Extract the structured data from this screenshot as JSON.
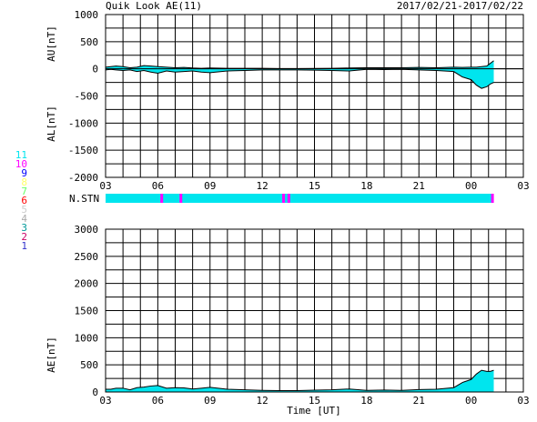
{
  "header": {
    "title": "Quik Look AE(11)",
    "date_range": "2017/02/21-2017/02/22"
  },
  "colors": {
    "fill": "#00e5ee",
    "line": "#000000",
    "grid": "#000000",
    "background": "#ffffff",
    "highlight": "#ff00ff"
  },
  "station_legend": {
    "items": [
      {
        "label": "11",
        "color": "#00e5ee"
      },
      {
        "label": "10",
        "color": "#ff00ff"
      },
      {
        "label": "9",
        "color": "#0000ff"
      },
      {
        "label": "8",
        "color": "#ffff66"
      },
      {
        "label": "7",
        "color": "#66ff66"
      },
      {
        "label": "6",
        "color": "#ff0000"
      },
      {
        "label": "5",
        "color": "#cccccc"
      },
      {
        "label": "4",
        "color": "#aaaaaa"
      },
      {
        "label": "3",
        "color": "#009999"
      },
      {
        "label": "2",
        "color": "#cc0066"
      },
      {
        "label": "1",
        "color": "#3333cc"
      }
    ]
  },
  "nstn": {
    "label": "N.STN",
    "base_count": 11,
    "markers": [
      {
        "t": 6.2,
        "count": 10
      },
      {
        "t": 7.3,
        "count": 10
      },
      {
        "t": 13.2,
        "count": 10
      },
      {
        "t": 13.5,
        "count": 10
      },
      {
        "t": 25.2,
        "count": 10
      }
    ],
    "data_end": 25.3
  },
  "chart_data": [
    {
      "type": "area",
      "panel": "AU-AL",
      "ylabel_upper": "AU[nT]",
      "ylabel_lower": "AL[nT]",
      "xlabel": "",
      "ylim": [
        -2000,
        1000
      ],
      "yticks": [
        1000,
        500,
        0,
        -500,
        -1000,
        -1500,
        -2000
      ],
      "xlim": [
        3,
        27
      ],
      "xticks": [
        "03",
        "06",
        "09",
        "12",
        "15",
        "18",
        "21",
        "00",
        "03"
      ],
      "grid": true,
      "series": [
        {
          "name": "AU",
          "x": [
            3,
            3.3,
            3.6,
            4,
            4.4,
            4.8,
            5.2,
            5.6,
            6,
            6.5,
            7,
            7.5,
            8,
            8.5,
            9,
            10,
            11,
            12,
            13,
            14,
            15,
            16,
            17,
            18,
            19,
            20,
            21,
            22,
            23,
            23.5,
            24,
            24.3,
            24.6,
            24.9,
            25.1,
            25.3
          ],
          "values": [
            30,
            40,
            50,
            40,
            20,
            30,
            60,
            50,
            40,
            30,
            20,
            25,
            15,
            10,
            15,
            10,
            10,
            10,
            5,
            5,
            8,
            10,
            15,
            20,
            20,
            20,
            25,
            20,
            30,
            25,
            30,
            30,
            40,
            50,
            100,
            150
          ]
        },
        {
          "name": "AL",
          "x": [
            3,
            3.3,
            3.6,
            4,
            4.4,
            4.8,
            5.2,
            5.6,
            6,
            6.5,
            7,
            7.5,
            8,
            8.5,
            9,
            10,
            11,
            12,
            13,
            14,
            15,
            16,
            17,
            18,
            19,
            20,
            21,
            22,
            23,
            23.5,
            24,
            24.3,
            24.6,
            24.9,
            25.1,
            25.3
          ],
          "values": [
            -20,
            -10,
            -20,
            -30,
            -20,
            -50,
            -30,
            -60,
            -80,
            -40,
            -60,
            -50,
            -40,
            -60,
            -70,
            -40,
            -30,
            -20,
            -20,
            -20,
            -25,
            -30,
            -40,
            -10,
            -15,
            -10,
            -20,
            -30,
            -50,
            -150,
            -200,
            -300,
            -360,
            -330,
            -280,
            -250
          ]
        }
      ]
    },
    {
      "type": "area",
      "panel": "AE",
      "ylabel": "AE[nT]",
      "xlabel": "Time [UT]",
      "ylim": [
        0,
        3000
      ],
      "yticks": [
        3000,
        2500,
        2000,
        1500,
        1000,
        500,
        0
      ],
      "xlim": [
        3,
        27
      ],
      "xticks": [
        "03",
        "06",
        "09",
        "12",
        "15",
        "18",
        "21",
        "00",
        "03"
      ],
      "grid": true,
      "series": [
        {
          "name": "AE",
          "x": [
            3,
            3.3,
            3.6,
            4,
            4.4,
            4.8,
            5.2,
            5.6,
            6,
            6.5,
            7,
            7.5,
            8,
            8.5,
            9,
            10,
            11,
            12,
            13,
            14,
            15,
            16,
            17,
            18,
            19,
            20,
            21,
            22,
            23,
            23.5,
            24,
            24.3,
            24.6,
            24.9,
            25.1,
            25.3
          ],
          "values": [
            50,
            50,
            70,
            70,
            40,
            80,
            90,
            110,
            120,
            70,
            80,
            75,
            55,
            70,
            85,
            50,
            40,
            30,
            25,
            25,
            33,
            40,
            55,
            30,
            35,
            30,
            45,
            50,
            80,
            175,
            230,
            330,
            400,
            380,
            380,
            400
          ]
        }
      ]
    }
  ]
}
